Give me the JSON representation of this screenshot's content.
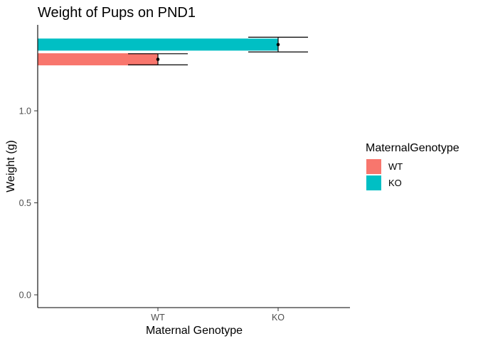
{
  "chart_data": {
    "type": "bar",
    "title": "Weight of Pups on PND1",
    "xlabel": "Maternal Genotype",
    "ylabel": "Weight (g)",
    "categories": [
      "WT",
      "KO"
    ],
    "series": [
      {
        "name": "WT",
        "color": "#F8766D",
        "value": 1.28,
        "error": 0.03
      },
      {
        "name": "KO",
        "color": "#00BFC4",
        "value": 1.36,
        "error": 0.04
      }
    ],
    "ylim": [
      0,
      1.45
    ],
    "yticks": [
      0.0,
      0.5,
      1.0
    ],
    "ytick_labels": [
      "0.0",
      "0.5",
      "1.0"
    ],
    "grid": false,
    "legend": {
      "title": "MaternalGenotype",
      "placement": "right",
      "entries": [
        "WT",
        "KO"
      ]
    }
  }
}
